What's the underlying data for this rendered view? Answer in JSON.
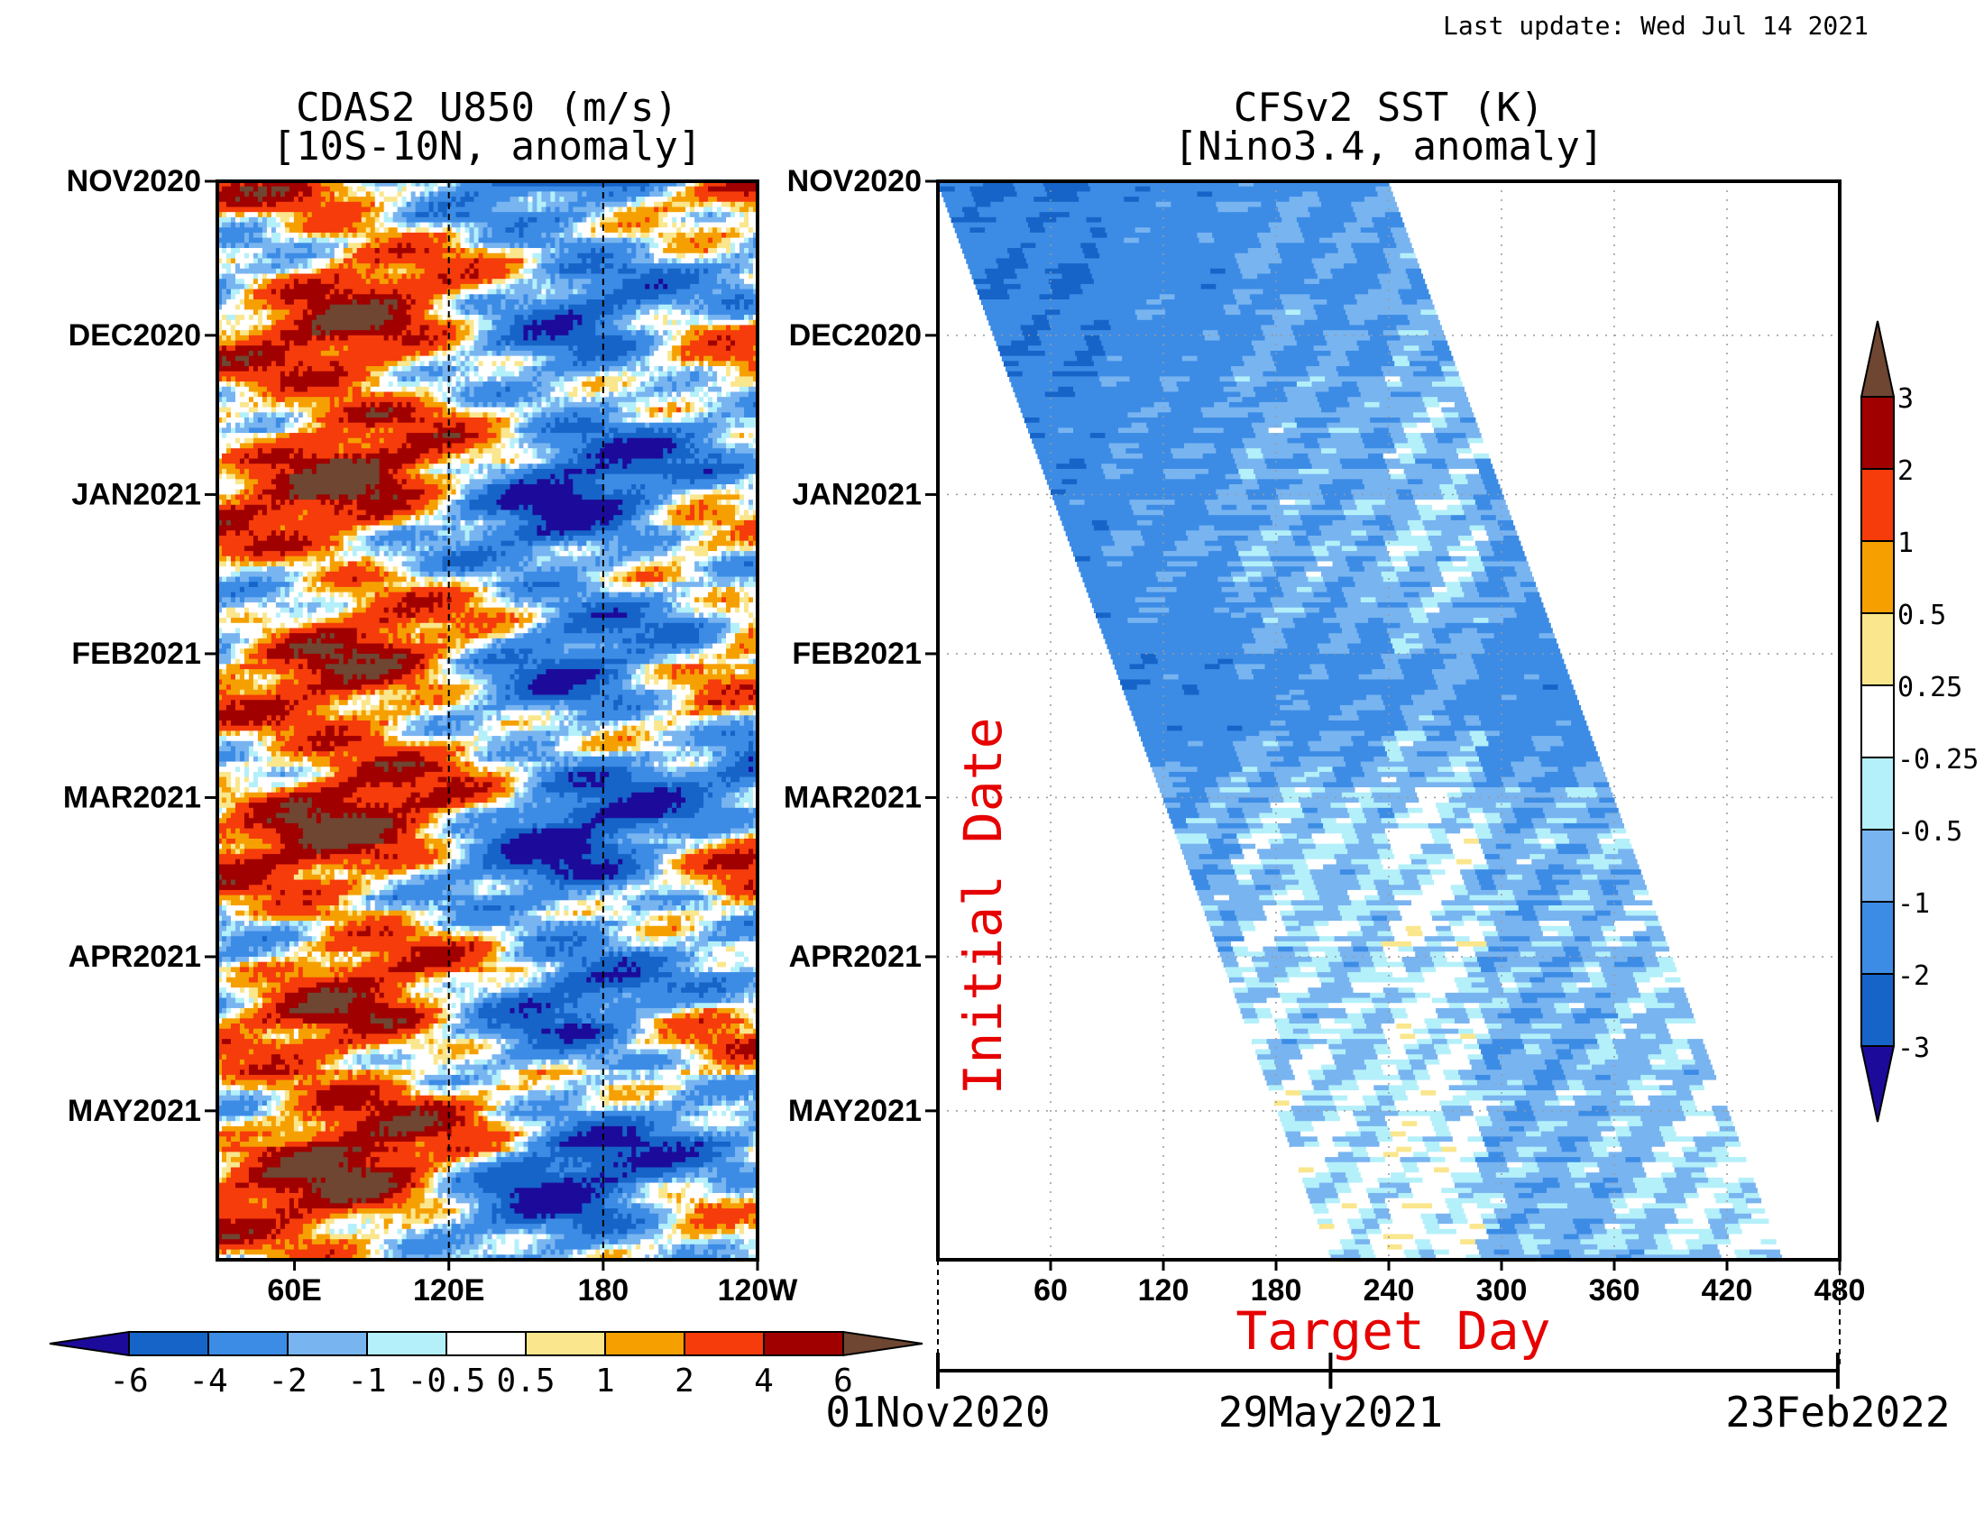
{
  "header": {
    "last_update": "Last update: Wed Jul 14 2021"
  },
  "palette": {
    "u850": [
      "#1c0b9b",
      "#1664c8",
      "#3c8ce6",
      "#78b4f0",
      "#b4f0fa",
      "#ffffff",
      "#fae68c",
      "#f5a000",
      "#f53c0a",
      "#a00000",
      "#6e4632"
    ],
    "sst": [
      "#1c0b9b",
      "#1664c8",
      "#3c8ce6",
      "#78b4f0",
      "#b4f0fa",
      "#ffffff",
      "#fae68c",
      "#f5a000",
      "#f53c0a",
      "#a00000",
      "#6e4632"
    ],
    "axis": "#000000",
    "annotation": "#e60000"
  },
  "chart_data": [
    {
      "type": "heatmap",
      "title": "CDAS2 U850 (m/s)",
      "subtitle": "[10S-10N, anomaly]",
      "x_ticks": [
        "60E",
        "120E",
        "180",
        "120W"
      ],
      "x_tick_lon": [
        60,
        120,
        180,
        240
      ],
      "x_range_lon": [
        30,
        240
      ],
      "y_ticks": [
        "NOV2020",
        "DEC2020",
        "JAN2021",
        "FEB2021",
        "MAR2021",
        "APR2021",
        "MAY2021"
      ],
      "y_tick_day": [
        0,
        30,
        61,
        92,
        120,
        151,
        181
      ],
      "y_range_day": [
        0,
        210
      ],
      "reference_lines_lon": [
        120,
        180
      ],
      "colorbar": {
        "labels": [
          "-6",
          "-4",
          "-2",
          "-1",
          "-0.5",
          "0.5",
          "1",
          "2",
          "4",
          "6"
        ],
        "orientation": "horizontal"
      }
    },
    {
      "type": "heatmap",
      "title": "CFSv2 SST (K)",
      "subtitle": "[Nino3.4, anomaly]",
      "xlabel": "Target Day",
      "ylabel": "Initial Date",
      "x_ticks": [
        "60",
        "120",
        "180",
        "240",
        "300",
        "360",
        "420",
        "480"
      ],
      "x_tick_values": [
        60,
        120,
        180,
        240,
        300,
        360,
        420,
        480
      ],
      "x_range": [
        0,
        480
      ],
      "y_ticks": [
        "NOV2020",
        "DEC2020",
        "JAN2021",
        "FEB2021",
        "MAR2021",
        "APR2021",
        "MAY2021"
      ],
      "y_tick_day": [
        0,
        30,
        61,
        92,
        120,
        151,
        181
      ],
      "y_range_day": [
        0,
        210
      ],
      "forecast_length_days": 240,
      "grid": true,
      "date_axis": {
        "labels": [
          "01Nov2020",
          "29May2021",
          "23Feb2022"
        ],
        "day_values": [
          0,
          209,
          479
        ]
      },
      "colorbar": {
        "labels": [
          "-3",
          "-2",
          "-1",
          "-0.5",
          "-0.25",
          "0.25",
          "0.5",
          "1",
          "2",
          "3"
        ],
        "orientation": "vertical"
      }
    }
  ]
}
